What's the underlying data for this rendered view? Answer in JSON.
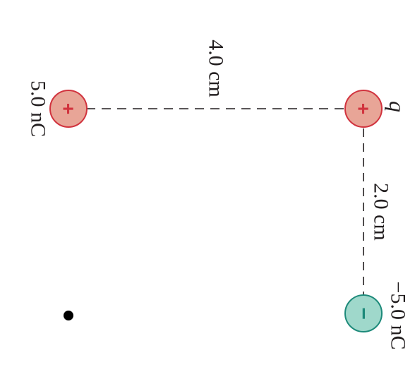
{
  "diagram": {
    "labels": {
      "distance_horizontal": "4.0 cm",
      "distance_vertical": "2.0 cm",
      "charge_left": "5.0 nC",
      "charge_q": "q",
      "charge_negative": "−5.0 nC"
    },
    "charges": {
      "left": {
        "sign": "+",
        "fill": "#e8a597",
        "stroke": "#d1333e",
        "sign_color": "#d1333e"
      },
      "q": {
        "sign": "+",
        "fill": "#e8a597",
        "stroke": "#d1333e",
        "sign_color": "#d1333e"
      },
      "negative": {
        "sign": "−",
        "fill": "#9fd8cb",
        "stroke": "#1d8a7a",
        "sign_color": "#1d8a7a"
      }
    },
    "point_color": "#000000",
    "line_color": "#231f20",
    "rotation": "90deg clockwise"
  }
}
